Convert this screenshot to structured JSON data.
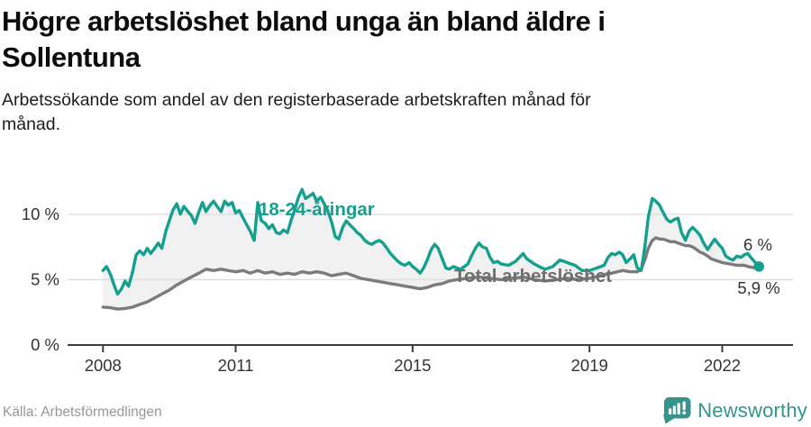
{
  "header": {
    "title_line1": "Högre arbetslöshet bland unga än bland äldre i",
    "title_line2": "Sollentuna",
    "subtitle_line1": "Arbetssökande som andel av den registerbaserade arbetskraften månad för",
    "subtitle_line2": "månad."
  },
  "footer": {
    "source": "Källa: Arbetsförmedlingen",
    "brand": "Newsworthy"
  },
  "colors": {
    "accent_teal": "#13a08f",
    "gray_line": "#7b7b7b",
    "band_fill": "#f1f1f1",
    "grid": "#dcdcdc",
    "axis": "#3d3d3d",
    "tick_text": "#333333",
    "series_label_gray": "#6e6e6e",
    "brand_teal": "#35948c"
  },
  "chart_data": {
    "type": "line",
    "title": "Högre arbetslöshet bland unga än bland äldre i Sollentuna",
    "subtitle": "Arbetssökande som andel av den registerbaserade arbetskraften månad för månad.",
    "xlabel": "",
    "ylabel": "",
    "xlim": [
      2007.2,
      2023.6
    ],
    "ylim": [
      0,
      12.4
    ],
    "grid": "horizontal",
    "legend_position": "inline-labels",
    "yticks": [
      {
        "v": 0,
        "label": "0 %",
        "gridline": false
      },
      {
        "v": 5,
        "label": "5 %",
        "gridline": true
      },
      {
        "v": 10,
        "label": "10 %",
        "gridline": true
      }
    ],
    "xticks": [
      {
        "t": 2008,
        "label": "2008"
      },
      {
        "t": 2011,
        "label": "2011"
      },
      {
        "t": 2015,
        "label": "2015"
      },
      {
        "t": 2019,
        "label": "2019"
      },
      {
        "t": 2022,
        "label": "2022"
      }
    ],
    "series": [
      {
        "name": "18-24-åringar",
        "color": "#13a08f",
        "end_label": "6 %",
        "end_dot": true,
        "points": [
          [
            2008.0,
            5.7
          ],
          [
            2008.08,
            6.0
          ],
          [
            2008.17,
            5.4
          ],
          [
            2008.25,
            4.6
          ],
          [
            2008.33,
            3.9
          ],
          [
            2008.42,
            4.3
          ],
          [
            2008.5,
            4.9
          ],
          [
            2008.58,
            4.5
          ],
          [
            2008.67,
            5.6
          ],
          [
            2008.75,
            6.9
          ],
          [
            2008.83,
            7.2
          ],
          [
            2008.92,
            6.9
          ],
          [
            2009.0,
            7.4
          ],
          [
            2009.08,
            7.0
          ],
          [
            2009.17,
            7.4
          ],
          [
            2009.25,
            7.8
          ],
          [
            2009.33,
            7.4
          ],
          [
            2009.42,
            8.7
          ],
          [
            2009.5,
            9.5
          ],
          [
            2009.58,
            10.3
          ],
          [
            2009.67,
            10.8
          ],
          [
            2009.75,
            10.0
          ],
          [
            2009.83,
            10.6
          ],
          [
            2009.92,
            10.2
          ],
          [
            2010.0,
            9.9
          ],
          [
            2010.08,
            9.3
          ],
          [
            2010.17,
            10.2
          ],
          [
            2010.25,
            10.9
          ],
          [
            2010.33,
            10.2
          ],
          [
            2010.42,
            10.7
          ],
          [
            2010.5,
            11.0
          ],
          [
            2010.58,
            10.6
          ],
          [
            2010.67,
            10.2
          ],
          [
            2010.75,
            11.0
          ],
          [
            2010.83,
            10.7
          ],
          [
            2010.92,
            10.9
          ],
          [
            2011.0,
            10.1
          ],
          [
            2011.08,
            10.3
          ],
          [
            2011.17,
            9.7
          ],
          [
            2011.25,
            9.2
          ],
          [
            2011.33,
            8.7
          ],
          [
            2011.42,
            8.0
          ],
          [
            2011.5,
            10.9
          ],
          [
            2011.58,
            9.5
          ],
          [
            2011.67,
            9.3
          ],
          [
            2011.75,
            8.9
          ],
          [
            2011.83,
            9.2
          ],
          [
            2011.92,
            8.6
          ],
          [
            2012.0,
            8.5
          ],
          [
            2012.08,
            8.8
          ],
          [
            2012.17,
            8.6
          ],
          [
            2012.25,
            9.5
          ],
          [
            2012.33,
            10.3
          ],
          [
            2012.42,
            11.3
          ],
          [
            2012.5,
            11.9
          ],
          [
            2012.58,
            11.2
          ],
          [
            2012.67,
            11.4
          ],
          [
            2012.75,
            11.6
          ],
          [
            2012.83,
            11.0
          ],
          [
            2012.92,
            11.3
          ],
          [
            2013.0,
            10.8
          ],
          [
            2013.08,
            10.3
          ],
          [
            2013.17,
            9.4
          ],
          [
            2013.25,
            8.3
          ],
          [
            2013.33,
            8.1
          ],
          [
            2013.42,
            9.0
          ],
          [
            2013.5,
            9.5
          ],
          [
            2013.58,
            9.2
          ],
          [
            2013.67,
            8.9
          ],
          [
            2013.75,
            8.6
          ],
          [
            2013.83,
            8.4
          ],
          [
            2013.92,
            8.0
          ],
          [
            2014.0,
            7.8
          ],
          [
            2014.08,
            7.7
          ],
          [
            2014.17,
            7.9
          ],
          [
            2014.25,
            8.0
          ],
          [
            2014.33,
            7.8
          ],
          [
            2014.42,
            7.4
          ],
          [
            2014.5,
            7.0
          ],
          [
            2014.58,
            6.7
          ],
          [
            2014.67,
            6.4
          ],
          [
            2014.75,
            6.2
          ],
          [
            2014.83,
            6.1
          ],
          [
            2014.92,
            6.3
          ],
          [
            2015.0,
            6.0
          ],
          [
            2015.08,
            5.8
          ],
          [
            2015.17,
            5.5
          ],
          [
            2015.25,
            5.9
          ],
          [
            2015.33,
            6.5
          ],
          [
            2015.42,
            7.3
          ],
          [
            2015.5,
            7.7
          ],
          [
            2015.58,
            7.4
          ],
          [
            2015.67,
            6.6
          ],
          [
            2015.75,
            5.9
          ],
          [
            2015.83,
            5.8
          ],
          [
            2015.92,
            6.0
          ],
          [
            2016.0,
            5.9
          ],
          [
            2016.08,
            5.8
          ],
          [
            2016.17,
            6.0
          ],
          [
            2016.25,
            6.2
          ],
          [
            2016.33,
            6.8
          ],
          [
            2016.42,
            7.4
          ],
          [
            2016.5,
            7.8
          ],
          [
            2016.58,
            7.5
          ],
          [
            2016.67,
            7.4
          ],
          [
            2016.75,
            6.7
          ],
          [
            2016.83,
            6.3
          ],
          [
            2016.92,
            6.4
          ],
          [
            2017.0,
            6.2
          ],
          [
            2017.17,
            6.1
          ],
          [
            2017.33,
            6.4
          ],
          [
            2017.5,
            7.0
          ],
          [
            2017.58,
            6.6
          ],
          [
            2017.75,
            6.2
          ],
          [
            2017.92,
            5.9
          ],
          [
            2018.0,
            5.8
          ],
          [
            2018.17,
            6.0
          ],
          [
            2018.33,
            6.5
          ],
          [
            2018.5,
            6.3
          ],
          [
            2018.67,
            6.1
          ],
          [
            2018.83,
            5.7
          ],
          [
            2019.0,
            5.7
          ],
          [
            2019.17,
            5.9
          ],
          [
            2019.33,
            6.1
          ],
          [
            2019.42,
            6.7
          ],
          [
            2019.5,
            7.0
          ],
          [
            2019.58,
            6.9
          ],
          [
            2019.67,
            7.1
          ],
          [
            2019.75,
            6.9
          ],
          [
            2019.83,
            6.3
          ],
          [
            2019.92,
            6.6
          ],
          [
            2020.0,
            6.9
          ],
          [
            2020.08,
            5.9
          ],
          [
            2020.17,
            5.7
          ],
          [
            2020.25,
            7.5
          ],
          [
            2020.33,
            9.8
          ],
          [
            2020.42,
            11.2
          ],
          [
            2020.5,
            11.0
          ],
          [
            2020.58,
            10.7
          ],
          [
            2020.67,
            10.1
          ],
          [
            2020.75,
            9.6
          ],
          [
            2020.83,
            9.4
          ],
          [
            2020.92,
            9.6
          ],
          [
            2021.0,
            9.7
          ],
          [
            2021.08,
            8.6
          ],
          [
            2021.17,
            8.0
          ],
          [
            2021.25,
            8.7
          ],
          [
            2021.33,
            9.0
          ],
          [
            2021.42,
            8.7
          ],
          [
            2021.5,
            8.4
          ],
          [
            2021.58,
            7.8
          ],
          [
            2021.67,
            7.3
          ],
          [
            2021.75,
            7.7
          ],
          [
            2021.83,
            8.1
          ],
          [
            2021.92,
            7.7
          ],
          [
            2022.0,
            7.4
          ],
          [
            2022.08,
            6.8
          ],
          [
            2022.17,
            6.6
          ],
          [
            2022.25,
            6.5
          ],
          [
            2022.33,
            6.8
          ],
          [
            2022.42,
            6.7
          ],
          [
            2022.5,
            6.9
          ],
          [
            2022.58,
            7.0
          ],
          [
            2022.67,
            6.6
          ],
          [
            2022.75,
            6.3
          ],
          [
            2022.83,
            6.0
          ]
        ]
      },
      {
        "name": "Total arbetslöshet",
        "color": "#7b7b7b",
        "end_label": "5,9 %",
        "end_dot": false,
        "points": [
          [
            2008.0,
            2.9
          ],
          [
            2008.17,
            2.85
          ],
          [
            2008.33,
            2.75
          ],
          [
            2008.5,
            2.8
          ],
          [
            2008.67,
            2.9
          ],
          [
            2008.83,
            3.1
          ],
          [
            2009.0,
            3.3
          ],
          [
            2009.17,
            3.6
          ],
          [
            2009.33,
            3.9
          ],
          [
            2009.5,
            4.2
          ],
          [
            2009.67,
            4.6
          ],
          [
            2009.83,
            4.9
          ],
          [
            2010.0,
            5.2
          ],
          [
            2010.17,
            5.5
          ],
          [
            2010.33,
            5.8
          ],
          [
            2010.5,
            5.7
          ],
          [
            2010.67,
            5.8
          ],
          [
            2010.83,
            5.7
          ],
          [
            2011.0,
            5.6
          ],
          [
            2011.17,
            5.7
          ],
          [
            2011.33,
            5.5
          ],
          [
            2011.5,
            5.7
          ],
          [
            2011.67,
            5.5
          ],
          [
            2011.83,
            5.6
          ],
          [
            2012.0,
            5.4
          ],
          [
            2012.17,
            5.5
          ],
          [
            2012.33,
            5.4
          ],
          [
            2012.5,
            5.6
          ],
          [
            2012.67,
            5.5
          ],
          [
            2012.83,
            5.6
          ],
          [
            2013.0,
            5.5
          ],
          [
            2013.17,
            5.3
          ],
          [
            2013.33,
            5.4
          ],
          [
            2013.5,
            5.5
          ],
          [
            2013.67,
            5.3
          ],
          [
            2013.83,
            5.1
          ],
          [
            2014.0,
            5.0
          ],
          [
            2014.17,
            4.9
          ],
          [
            2014.33,
            4.8
          ],
          [
            2014.5,
            4.7
          ],
          [
            2014.67,
            4.6
          ],
          [
            2014.83,
            4.5
          ],
          [
            2015.0,
            4.4
          ],
          [
            2015.17,
            4.3
          ],
          [
            2015.33,
            4.4
          ],
          [
            2015.5,
            4.6
          ],
          [
            2015.67,
            4.7
          ],
          [
            2015.83,
            4.9
          ],
          [
            2016.0,
            5.0
          ],
          [
            2016.25,
            5.1
          ],
          [
            2016.5,
            5.2
          ],
          [
            2016.75,
            5.1
          ],
          [
            2017.0,
            5.0
          ],
          [
            2017.25,
            5.1
          ],
          [
            2017.5,
            5.2
          ],
          [
            2017.75,
            5.0
          ],
          [
            2018.0,
            4.9
          ],
          [
            2018.25,
            5.0
          ],
          [
            2018.5,
            5.1
          ],
          [
            2018.75,
            5.0
          ],
          [
            2019.0,
            5.1
          ],
          [
            2019.25,
            5.3
          ],
          [
            2019.5,
            5.5
          ],
          [
            2019.75,
            5.7
          ],
          [
            2019.92,
            5.6
          ],
          [
            2020.08,
            5.6
          ],
          [
            2020.17,
            5.8
          ],
          [
            2020.25,
            6.5
          ],
          [
            2020.33,
            7.4
          ],
          [
            2020.42,
            8.0
          ],
          [
            2020.5,
            8.2
          ],
          [
            2020.58,
            8.1
          ],
          [
            2020.67,
            8.1
          ],
          [
            2020.75,
            8.0
          ],
          [
            2020.83,
            7.9
          ],
          [
            2020.92,
            7.9
          ],
          [
            2021.0,
            7.8
          ],
          [
            2021.08,
            7.7
          ],
          [
            2021.17,
            7.6
          ],
          [
            2021.25,
            7.6
          ],
          [
            2021.33,
            7.5
          ],
          [
            2021.42,
            7.3
          ],
          [
            2021.5,
            7.1
          ],
          [
            2021.58,
            7.0
          ],
          [
            2021.67,
            6.8
          ],
          [
            2021.75,
            6.6
          ],
          [
            2021.83,
            6.5
          ],
          [
            2021.92,
            6.4
          ],
          [
            2022.0,
            6.3
          ],
          [
            2022.17,
            6.2
          ],
          [
            2022.33,
            6.1
          ],
          [
            2022.5,
            6.1
          ],
          [
            2022.58,
            6.0
          ],
          [
            2022.75,
            5.9
          ],
          [
            2022.83,
            5.9
          ]
        ]
      }
    ]
  }
}
